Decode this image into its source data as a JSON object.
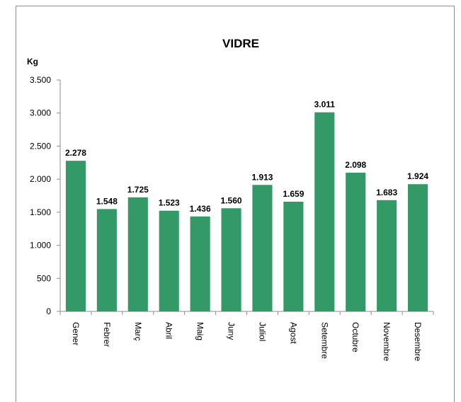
{
  "chart_data": {
    "type": "bar",
    "title": "VIDRE",
    "ylabel": "Kg",
    "xlabel": "",
    "categories": [
      "Gener",
      "Febrer",
      "Març",
      "Abril",
      "Maig",
      "Juny",
      "Juliol",
      "Agost",
      "Setembre",
      "Octubre",
      "Novembre",
      "Desembre"
    ],
    "values": [
      2278,
      1548,
      1725,
      1523,
      1436,
      1560,
      1913,
      1659,
      3011,
      2098,
      1683,
      1924
    ],
    "data_labels": [
      "2.278",
      "1.548",
      "1.725",
      "1.523",
      "1.436",
      "1.560",
      "1.913",
      "1.659",
      "3.011",
      "2.098",
      "1.683",
      "1.924"
    ],
    "ylim": [
      0,
      3500
    ],
    "yticks": [
      0,
      500,
      1000,
      1500,
      2000,
      2500,
      3000,
      3500
    ],
    "ytick_labels": [
      "0",
      "500",
      "1.000",
      "1.500",
      "2.000",
      "2.500",
      "3.000",
      "3.500"
    ],
    "bar_color": "#339966",
    "grid": false,
    "legend": "none"
  }
}
